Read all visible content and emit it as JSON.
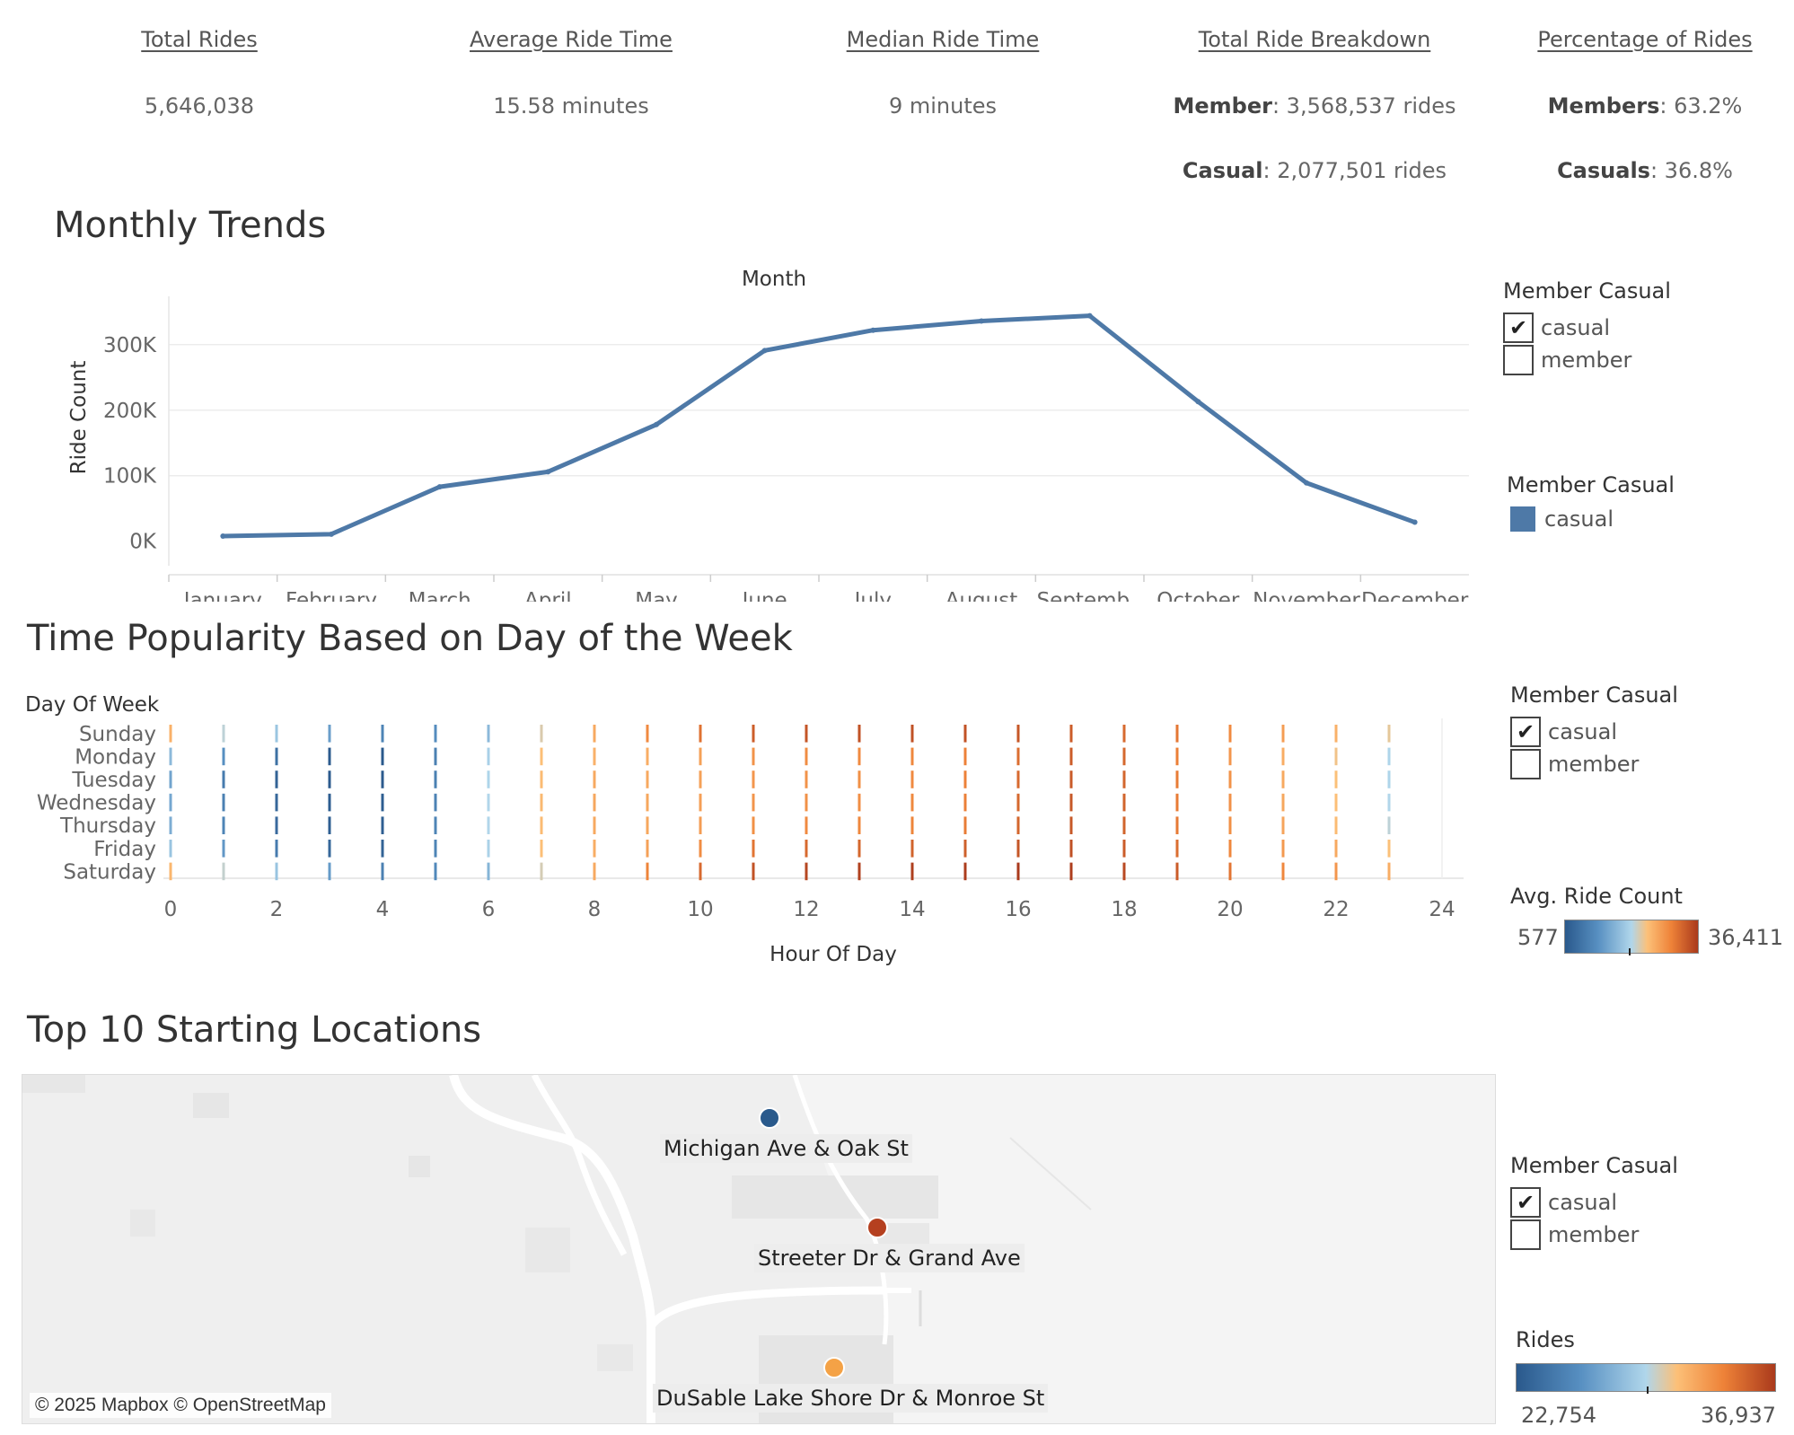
{
  "kpis": [
    {
      "title": "Total Rides",
      "lines": [
        {
          "bold": "",
          "text": "5,646,038"
        }
      ]
    },
    {
      "title": "Average Ride Time",
      "lines": [
        {
          "bold": "",
          "text": "15.58 minutes"
        }
      ]
    },
    {
      "title": "Median Ride Time",
      "lines": [
        {
          "bold": "",
          "text": "9 minutes"
        }
      ]
    },
    {
      "title": "Total Ride Breakdown",
      "lines": [
        {
          "bold": "Member",
          "text": ": 3,568,537 rides"
        },
        {
          "bold": "Casual",
          "text": ": 2,077,501 rides"
        }
      ]
    },
    {
      "title": "Percentage of Rides",
      "lines": [
        {
          "bold": "Members",
          "text": ": 63.2%"
        },
        {
          "bold": "Casuals",
          "text": ": 36.8%"
        }
      ]
    }
  ],
  "monthly": {
    "title": "Monthly Trends",
    "legend_filter": {
      "title": "Member Casual",
      "options": [
        {
          "label": "casual",
          "checked": true
        },
        {
          "label": "member",
          "checked": false
        }
      ]
    },
    "legend_color": {
      "title": "Member Casual",
      "items": [
        {
          "label": "casual",
          "color": "#4e79a7"
        }
      ]
    }
  },
  "weekly": {
    "title": "Time Popularity Based on Day of the Week",
    "legend_filter": {
      "title": "Member Casual",
      "options": [
        {
          "label": "casual",
          "checked": true
        },
        {
          "label": "member",
          "checked": false
        }
      ]
    },
    "color_legend": {
      "title": "Avg. Ride Count",
      "min": "577",
      "max": "36,411"
    }
  },
  "locations": {
    "title": "Top 10 Starting Locations",
    "labels": [
      {
        "name": "Michigan Ave & Oak St",
        "color": "#2a5a8c"
      },
      {
        "name": "Streeter Dr & Grand Ave",
        "color": "#b5401f"
      },
      {
        "name": "DuSable Lake Shore Dr & Monroe St",
        "color": "#f4a246"
      }
    ],
    "attribution": "© 2025 Mapbox © OpenStreetMap",
    "legend_filter": {
      "title": "Member Casual",
      "options": [
        {
          "label": "casual",
          "checked": true
        },
        {
          "label": "member",
          "checked": false
        }
      ]
    },
    "color_legend": {
      "title": "Rides",
      "min": "22,754",
      "max": "36,937"
    }
  },
  "chart_data": [
    {
      "type": "line",
      "title": "Month",
      "xlabel": "Month",
      "ylabel": "Ride Count",
      "categories": [
        "January",
        "February",
        "March",
        "April",
        "May",
        "June",
        "July",
        "August",
        "Septemb..",
        "October",
        "November",
        "December"
      ],
      "series": [
        {
          "name": "casual",
          "color": "#4e79a7",
          "values": [
            7800,
            10800,
            83000,
            106000,
            178000,
            291000,
            322000,
            336000,
            344000,
            213000,
            89000,
            29000
          ]
        }
      ],
      "y_ticks": [
        {
          "value": 0,
          "label": "0K"
        },
        {
          "value": 100000,
          "label": "100K"
        },
        {
          "value": 200000,
          "label": "200K"
        },
        {
          "value": 300000,
          "label": "300K"
        }
      ],
      "ylim": [
        -10000,
        360000
      ],
      "grid": true,
      "legend": "right"
    },
    {
      "type": "heatmap",
      "xlabel": "Hour Of Day",
      "ylabel": "Day Of Week",
      "y_categories": [
        "Sunday",
        "Monday",
        "Tuesday",
        "Wednesday",
        "Thursday",
        "Friday",
        "Saturday"
      ],
      "x_ticks": [
        0,
        2,
        4,
        6,
        8,
        10,
        12,
        14,
        16,
        18,
        20,
        22,
        24
      ],
      "xlim": [
        0,
        24
      ],
      "color_range": [
        577,
        36411
      ],
      "values": [
        [
          9000,
          5000,
          3600,
          2000,
          1300,
          1500,
          3000,
          6000,
          10000,
          14500,
          19000,
          24000,
          26500,
          27500,
          27800,
          27500,
          26000,
          24500,
          21000,
          18000,
          14500,
          11500,
          9000,
          6500
        ],
        [
          3000,
          1600,
          900,
          600,
          577,
          1200,
          4200,
          7600,
          9000,
          9500,
          11000,
          13000,
          14000,
          14500,
          15000,
          16000,
          20000,
          24500,
          21500,
          16500,
          12500,
          9500,
          7000,
          4500
        ],
        [
          2200,
          1100,
          700,
          600,
          600,
          1200,
          4500,
          8000,
          10000,
          10000,
          11000,
          12500,
          13000,
          13500,
          14500,
          16000,
          21000,
          25000,
          22000,
          17000,
          13000,
          10000,
          7500,
          4500
        ],
        [
          2300,
          1200,
          750,
          620,
          620,
          1250,
          4600,
          8200,
          10200,
          10200,
          11200,
          12800,
          13300,
          13800,
          14800,
          16500,
          21500,
          25500,
          22500,
          17200,
          13200,
          10200,
          7600,
          4600
        ],
        [
          2500,
          1300,
          800,
          650,
          650,
          1300,
          4600,
          8000,
          10000,
          10200,
          11500,
          13500,
          14500,
          15000,
          15500,
          17000,
          22000,
          25500,
          22500,
          17500,
          13500,
          10500,
          8000,
          5000
        ],
        [
          3500,
          1800,
          1100,
          750,
          700,
          1300,
          4300,
          7600,
          9500,
          11000,
          14000,
          18500,
          21000,
          21800,
          22500,
          23500,
          26500,
          28000,
          24500,
          20000,
          15000,
          12000,
          10000,
          7500
        ],
        [
          8500,
          5200,
          3500,
          1900,
          1200,
          1400,
          2800,
          5800,
          10000,
          15500,
          21000,
          27500,
          31500,
          33500,
          34500,
          35500,
          36411,
          35000,
          30500,
          24500,
          18500,
          15000,
          12500,
          9500
        ]
      ]
    },
    {
      "type": "scatter",
      "title": "Top 10 Starting Locations",
      "color_range": [
        22754,
        36937
      ],
      "points": [
        {
          "name": "Michigan Ave & Oak St",
          "rides": 24300
        },
        {
          "name": "Streeter Dr & Grand Ave",
          "rides": 36937
        },
        {
          "name": "DuSable Lake Shore Dr & Monroe St",
          "rides": 31500
        }
      ]
    }
  ]
}
